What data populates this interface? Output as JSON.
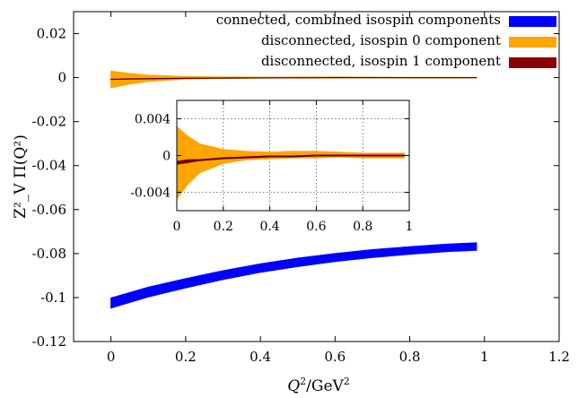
{
  "chart_data": {
    "type": "area",
    "xlabel_main": "Q",
    "xlabel_sup": "2",
    "xlabel_rest": "/GeV",
    "xlabel_sup2": "2",
    "ylabel": "Z²_V Π(Q²)",
    "xlim": [
      -0.1,
      1.2
    ],
    "ylim": [
      -0.12,
      0.03
    ],
    "xticks": [
      "0",
      "0.2",
      "0.4",
      "0.6",
      "0.8",
      "1",
      "1.2"
    ],
    "yticks": [
      "0.02",
      "0",
      "-0.02",
      "-0.04",
      "-0.06",
      "-0.08",
      "-0.1",
      "-0.12"
    ],
    "legend_position": "top-right",
    "series": [
      {
        "name": "connected, combined isospin components",
        "color": "#0000ff",
        "x": [
          0,
          0.1,
          0.2,
          0.3,
          0.4,
          0.5,
          0.6,
          0.7,
          0.8,
          0.9,
          0.98
        ],
        "y": [
          -0.1025,
          -0.0975,
          -0.0935,
          -0.0898,
          -0.0866,
          -0.084,
          -0.0818,
          -0.08,
          -0.0786,
          -0.0774,
          -0.0768
        ],
        "err": [
          0.0025,
          0.0024,
          0.0023,
          0.0022,
          0.0021,
          0.0021,
          0.002,
          0.002,
          0.0019,
          0.0019,
          0.0019
        ]
      },
      {
        "name": "disconnected, isospin 0 component",
        "color": "#ffa500",
        "x": [
          0,
          0.05,
          0.1,
          0.2,
          0.3,
          0.4,
          0.5,
          0.6,
          0.7,
          0.8,
          0.9,
          0.98
        ],
        "y": [
          -0.0008,
          -0.0005,
          -0.0003,
          -0.0001,
          0.0,
          0.0,
          0.0001,
          0.0001,
          0.0001,
          0.0,
          0.0,
          0.0
        ],
        "err": [
          0.004,
          0.0026,
          0.0016,
          0.0008,
          0.0005,
          0.0004,
          0.0004,
          0.0004,
          0.0003,
          0.0003,
          0.0003,
          0.0003
        ]
      },
      {
        "name": "disconnected, isospin 1 component",
        "color": "#8b0000",
        "x": [
          0,
          0.05,
          0.1,
          0.2,
          0.3,
          0.4,
          0.5,
          0.6,
          0.7,
          0.8,
          0.9,
          0.98
        ],
        "y": [
          -0.0008,
          -0.0006,
          -0.0005,
          -0.0003,
          -0.0002,
          -0.0001,
          -0.0001,
          0.0,
          0.0,
          0.0,
          0.0,
          0.0
        ],
        "err": [
          0.0002,
          0.0002,
          0.0001,
          0.0001,
          0.0001,
          0.0001,
          0.0001,
          0.0001,
          0.0001,
          0.0001,
          0.0001,
          0.0001
        ]
      }
    ],
    "inset": {
      "xlim": [
        0,
        1
      ],
      "ylim": [
        -0.006,
        0.006
      ],
      "xticks": [
        "0",
        "0.2",
        "0.4",
        "0.6",
        "0.8",
        "1"
      ],
      "yticks": [
        "0.004",
        "0",
        "-0.004"
      ],
      "grid": true
    }
  }
}
